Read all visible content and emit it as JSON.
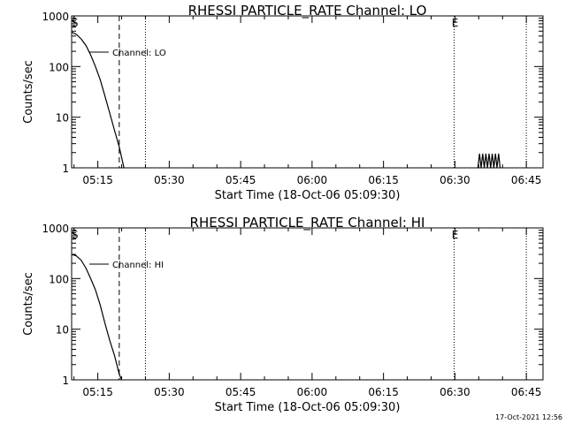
{
  "chart_data": [
    {
      "type": "line",
      "title": "RHESSI PARTICLE_RATE Channel: LO",
      "xlabel": "Start Time (18-Oct-06 05:09:30)",
      "ylabel": "Counts/sec",
      "y_scale": "log",
      "ylim": [
        1,
        1000
      ],
      "y_ticks": [
        "1",
        "10",
        "100",
        "1000"
      ],
      "xlim": [
        "05:09:30",
        "06:48:30"
      ],
      "x_ticks": [
        "05:15",
        "05:30",
        "05:45",
        "06:00",
        "06:15",
        "06:30",
        "06:45"
      ],
      "legend": "Channel: LO",
      "markers": [
        {
          "label": "S",
          "time": "05:10:00",
          "style": "dashed-tick"
        },
        {
          "time": "05:19:30",
          "style": "dashed"
        },
        {
          "time": "05:25:00",
          "style": "dotted"
        },
        {
          "label": "E",
          "time": "06:29:50",
          "style": "dotted"
        },
        {
          "time": "06:45:00",
          "style": "dotted"
        }
      ],
      "series": [
        {
          "values": [
            [
              "05:09:30",
              480
            ],
            [
              "05:10:30",
              430
            ],
            [
              "05:11:30",
              350
            ],
            [
              "05:12:30",
              260
            ],
            [
              "05:13:30",
              170
            ],
            [
              "05:14:30",
              100
            ],
            [
              "05:15:30",
              55
            ],
            [
              "05:16:30",
              26
            ],
            [
              "05:17:30",
              12
            ],
            [
              "05:18:30",
              5.5
            ],
            [
              "05:19:30",
              2.6
            ],
            [
              "05:20:00",
              1.6
            ],
            [
              "05:20:30",
              1.0
            ],
            [
              "06:34:50",
              1.0
            ],
            [
              "06:35:10",
              1.9
            ],
            [
              "06:35:30",
              1.0
            ],
            [
              "06:35:50",
              1.9
            ],
            [
              "06:36:10",
              1.0
            ],
            [
              "06:36:30",
              1.9
            ],
            [
              "06:36:50",
              1.0
            ],
            [
              "06:37:10",
              1.9
            ],
            [
              "06:37:30",
              1.0
            ],
            [
              "06:37:50",
              1.9
            ],
            [
              "06:38:10",
              1.0
            ],
            [
              "06:38:30",
              1.9
            ],
            [
              "06:38:50",
              1.0
            ],
            [
              "06:39:10",
              1.9
            ],
            [
              "06:39:30",
              1.0
            ]
          ]
        }
      ]
    },
    {
      "type": "line",
      "title": "RHESSI PARTICLE_RATE Channel: HI",
      "xlabel": "Start Time (18-Oct-06 05:09:30)",
      "ylabel": "Counts/sec",
      "y_scale": "log",
      "ylim": [
        1,
        1000
      ],
      "y_ticks": [
        "1",
        "10",
        "100",
        "1000"
      ],
      "xlim": [
        "05:09:30",
        "06:48:30"
      ],
      "x_ticks": [
        "05:15",
        "05:30",
        "05:45",
        "06:00",
        "06:15",
        "06:30",
        "06:45"
      ],
      "legend": "Channel: HI",
      "markers": [
        {
          "label": "S",
          "time": "05:10:00",
          "style": "dashed-tick"
        },
        {
          "time": "05:19:30",
          "style": "dashed"
        },
        {
          "time": "05:25:00",
          "style": "dotted"
        },
        {
          "label": "E",
          "time": "06:29:50",
          "style": "dotted"
        },
        {
          "time": "06:45:00",
          "style": "dotted"
        }
      ],
      "series": [
        {
          "values": [
            [
              "05:09:30",
              300
            ],
            [
              "05:10:30",
              280
            ],
            [
              "05:11:30",
              230
            ],
            [
              "05:12:30",
              160
            ],
            [
              "05:13:30",
              100
            ],
            [
              "05:14:30",
              60
            ],
            [
              "05:15:30",
              30
            ],
            [
              "05:16:30",
              13
            ],
            [
              "05:17:30",
              6
            ],
            [
              "05:18:30",
              3
            ],
            [
              "05:19:00",
              2
            ],
            [
              "05:19:30",
              1.3
            ],
            [
              "05:20:00",
              1.0
            ]
          ]
        }
      ]
    }
  ],
  "footer": "17-Oct-2021 12:56"
}
